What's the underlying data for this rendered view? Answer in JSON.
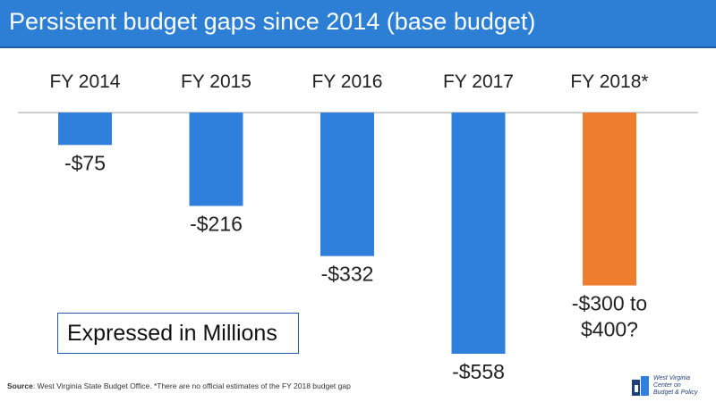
{
  "title": "Persistent budget gaps since 2014 (base budget)",
  "note": "Expressed in Millions",
  "source_label": "Source",
  "source_text": ": West Virginia State Budget Office. *There are no official estimates of the FY 2018 budget gap",
  "logo": {
    "line1": "West Virginia",
    "line2": "Center on",
    "line3": "Budget & Policy"
  },
  "chart_data": {
    "type": "bar",
    "categories": [
      "FY 2014",
      "FY 2015",
      "FY 2016",
      "FY 2017",
      "FY 2018*"
    ],
    "values": [
      -75,
      -216,
      -332,
      -558,
      -400
    ],
    "value_labels": [
      "-$75",
      "-$216",
      "-$332",
      "-$558",
      "-$300 to $400?"
    ],
    "bar_colors": [
      "#2f80dc",
      "#2f80dc",
      "#2f80dc",
      "#2f80dc",
      "#ef7d2e"
    ],
    "ylim": [
      -558,
      0
    ],
    "grid": false,
    "legend": "none"
  }
}
